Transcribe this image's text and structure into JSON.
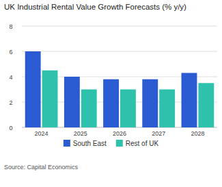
{
  "chart_data": {
    "type": "bar",
    "title": "UK Industrial Rental Value Growth Forecasts (% y/y)",
    "source": "Source: Capital Economics",
    "categories": [
      "2024",
      "2025",
      "2026",
      "2027",
      "2028"
    ],
    "series": [
      {
        "name": "South East",
        "color": "#2b5bd3",
        "values": [
          6.0,
          4.0,
          3.8,
          3.8,
          4.3
        ]
      },
      {
        "name": "Rest of UK",
        "color": "#2ec2ad",
        "values": [
          4.5,
          3.0,
          3.0,
          3.0,
          3.5
        ]
      }
    ],
    "ylim": [
      0,
      8
    ],
    "yticks": [
      0,
      2,
      4,
      6,
      8
    ],
    "grid": true,
    "legend": "bottom"
  }
}
